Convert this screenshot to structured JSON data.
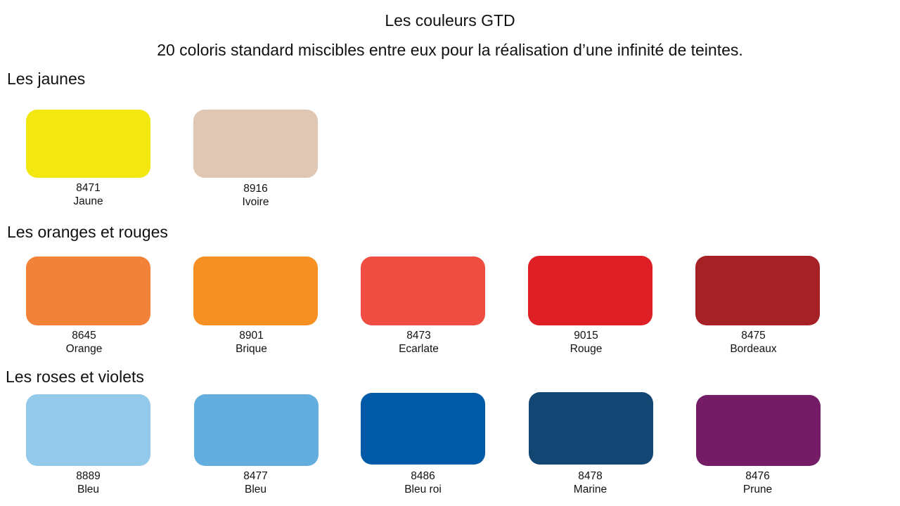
{
  "page": {
    "title": "Les couleurs GTD",
    "subtitle": "20 coloris standard miscibles entre eux pour la réalisation d’une infinité de teintes."
  },
  "sections": [
    {
      "heading": "Les jaunes",
      "swatches": [
        {
          "code": "8471",
          "name": "Jaune",
          "color": "#F2E80F"
        },
        {
          "code": "8916",
          "name": "Ivoire",
          "color": "#DFC7B3"
        }
      ]
    },
    {
      "heading": "Les oranges et rouges",
      "swatches": [
        {
          "code": "8645",
          "name": "Orange",
          "color": "#F28237"
        },
        {
          "code": "8901",
          "name": "Brique",
          "color": "#F69022"
        },
        {
          "code": "8473",
          "name": "Ecarlate",
          "color": "#EF4C42"
        },
        {
          "code": "9015",
          "name": "Rouge",
          "color": "#DE1F26"
        },
        {
          "code": "8475",
          "name": "Bordeaux",
          "color": "#A62126"
        }
      ]
    },
    {
      "heading": "Les roses et violets",
      "swatches": [
        {
          "code": "8889",
          "name": "Bleu",
          "color": "#93C9EB"
        },
        {
          "code": "8477",
          "name": "Bleu",
          "color": "#61AEDF"
        },
        {
          "code": "8486",
          "name": "Bleu roi",
          "color": "#005AA8"
        },
        {
          "code": "8478",
          "name": "Marine",
          "color": "#124774"
        },
        {
          "code": "8476",
          "name": "Prune",
          "color": "#741D66"
        }
      ]
    }
  ]
}
